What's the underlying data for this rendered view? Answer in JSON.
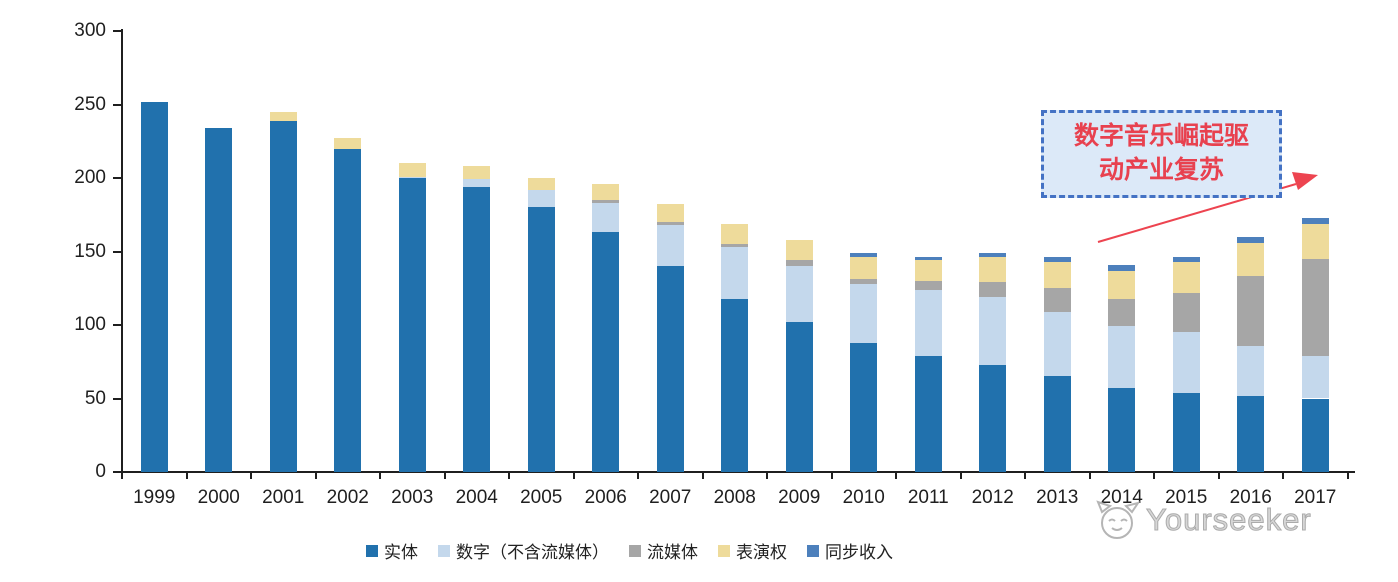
{
  "chart_data": {
    "type": "bar",
    "stacked": true,
    "title": "",
    "xlabel": "",
    "ylabel": "",
    "categories": [
      "1999",
      "2000",
      "2001",
      "2002",
      "2003",
      "2004",
      "2005",
      "2006",
      "2007",
      "2008",
      "2009",
      "2010",
      "2011",
      "2012",
      "2013",
      "2014",
      "2015",
      "2016",
      "2017"
    ],
    "series": [
      {
        "name": "实体",
        "color": "#2171AD",
        "values": [
          252,
          234,
          239,
          220,
          200,
          194,
          180,
          163,
          140,
          118,
          102,
          88,
          79,
          73,
          65,
          57,
          54,
          52,
          50
        ]
      },
      {
        "name": "数字（不含流媒体）",
        "color": "#C4D8EC",
        "values": [
          0,
          0,
          0,
          0,
          1,
          5,
          12,
          20,
          28,
          35,
          38,
          40,
          45,
          46,
          44,
          42,
          41,
          34,
          29
        ]
      },
      {
        "name": "流媒体",
        "color": "#A6A6A6",
        "values": [
          0,
          0,
          0,
          0,
          0,
          0,
          0,
          2,
          2,
          2,
          4,
          3,
          6,
          10,
          16,
          19,
          27,
          47,
          66
        ]
      },
      {
        "name": "表演权",
        "color": "#EEDB9B",
        "values": [
          0,
          0,
          6,
          7,
          9,
          9,
          8,
          11,
          12,
          14,
          14,
          15,
          14,
          17,
          18,
          19,
          21,
          23,
          24
        ]
      },
      {
        "name": "同步收入",
        "color": "#4D80BC",
        "values": [
          0,
          0,
          0,
          0,
          0,
          0,
          0,
          0,
          0,
          0,
          0,
          3,
          2,
          3,
          3,
          4,
          3,
          4,
          4
        ]
      }
    ],
    "ylim": [
      0,
      300
    ],
    "yticks": [
      0,
      50,
      100,
      150,
      200,
      250,
      300
    ],
    "grid": false,
    "legend_position": "bottom"
  },
  "annotation": {
    "line1": "数字音乐崛起驱",
    "line2": "动产业复苏",
    "text_color": "#E8414F",
    "border_color": "#4472C4",
    "fill_color": "#DCE9F8",
    "arrow_color": "#ED4450"
  },
  "watermark": {
    "text": "Yourseeker",
    "color": "#BDBDBD"
  },
  "axis_color": "#1F1F1F"
}
